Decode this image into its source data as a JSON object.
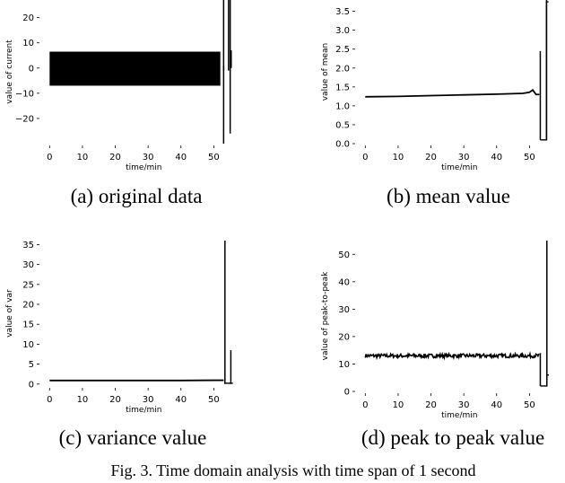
{
  "figure_caption": "Fig. 3.  Time domain analysis with time span of 1 second",
  "chart_data": [
    {
      "id": "a",
      "type": "line",
      "caption": "(a) original data",
      "xlabel": "time/min",
      "ylabel": "value of current",
      "xlim": [
        -2,
        57
      ],
      "ylim": [
        -30,
        27
      ],
      "xticks": [
        0,
        10,
        20,
        30,
        40,
        50
      ],
      "yticks": [
        -20,
        -10,
        0,
        10,
        20
      ],
      "grid": false,
      "series": [
        {
          "style": "dense-oscillation",
          "x": [
            0,
            52
          ],
          "upper": [
            6.5,
            6.5
          ],
          "lower": [
            -7,
            -7
          ],
          "tail": [
            {
              "x": 53.0,
              "y0": -30,
              "y1": 27
            },
            {
              "x": 53.0,
              "y0": -1,
              "y1": 1
            },
            {
              "x": 54.5,
              "y0": -1,
              "y1": 27
            },
            {
              "x": 55.0,
              "y0": -26,
              "y1": 27
            },
            {
              "x": 55.3,
              "y0": 0,
              "y1": 7
            }
          ]
        }
      ]
    },
    {
      "id": "b",
      "type": "line",
      "caption": "(b) mean value",
      "xlabel": "time/min",
      "ylabel": "value of mean",
      "xlim": [
        -2,
        57
      ],
      "ylim": [
        0,
        3.8
      ],
      "xticks": [
        0,
        10,
        20,
        30,
        40,
        50
      ],
      "yticks": [
        0.0,
        0.5,
        1.0,
        1.5,
        2.0,
        2.5,
        3.0,
        3.5
      ],
      "grid": false,
      "series": [
        {
          "style": "line",
          "x": [
            0,
            10,
            20,
            30,
            40,
            48,
            50,
            51,
            52,
            53
          ],
          "y": [
            1.24,
            1.25,
            1.27,
            1.29,
            1.31,
            1.33,
            1.36,
            1.42,
            1.3,
            1.3
          ],
          "tail": [
            {
              "x": 53.3,
              "y0": 0.1,
              "y1": 2.45
            },
            {
              "x": 55.2,
              "y0": 0.1,
              "y1": 3.8
            }
          ],
          "tail_path": [
            [
              53.3,
              0.1
            ],
            [
              55.2,
              0.1
            ],
            [
              55.2,
              3.75
            ],
            [
              55.8,
              3.75
            ]
          ]
        }
      ]
    },
    {
      "id": "c",
      "type": "line",
      "caption": "(c) variance value",
      "xlabel": "time/min",
      "ylabel": "value of var",
      "xlim": [
        -2,
        57
      ],
      "ylim": [
        -0.5,
        36
      ],
      "xticks": [
        0,
        10,
        20,
        30,
        40,
        50
      ],
      "yticks": [
        0,
        5,
        10,
        15,
        20,
        25,
        30,
        35
      ],
      "grid": false,
      "series": [
        {
          "style": "line",
          "x": [
            0,
            10,
            20,
            30,
            40,
            50,
            53
          ],
          "y": [
            0.9,
            0.9,
            0.9,
            0.9,
            0.9,
            0.95,
            0.95
          ],
          "tail": [
            {
              "x": 53.4,
              "y0": 0,
              "y1": 36
            },
            {
              "x": 55.2,
              "y0": 0,
              "y1": 8.5
            }
          ],
          "tail_path": [
            [
              53.4,
              0.2
            ],
            [
              55.2,
              0.2
            ],
            [
              55.8,
              0.2
            ]
          ]
        }
      ]
    },
    {
      "id": "d",
      "type": "line",
      "caption": "(d) peak to peak value",
      "xlabel": "time/min",
      "ylabel": "value of peak-to-peak",
      "xlim": [
        -2,
        57
      ],
      "ylim": [
        0,
        55
      ],
      "xticks": [
        0,
        10,
        20,
        30,
        40,
        50
      ],
      "yticks": [
        0,
        10,
        20,
        30,
        40,
        50
      ],
      "grid": false,
      "series": [
        {
          "style": "noisy-line",
          "x": [
            0,
            53
          ],
          "y_level": 13,
          "noise": 0.7,
          "tail": [
            {
              "x": 53.3,
              "y0": 2,
              "y1": 14
            },
            {
              "x": 55.3,
              "y0": 2,
              "y1": 55
            }
          ],
          "tail_path": [
            [
              53.3,
              2
            ],
            [
              55.3,
              2
            ],
            [
              55.3,
              6
            ],
            [
              55.9,
              6
            ]
          ]
        }
      ]
    }
  ]
}
